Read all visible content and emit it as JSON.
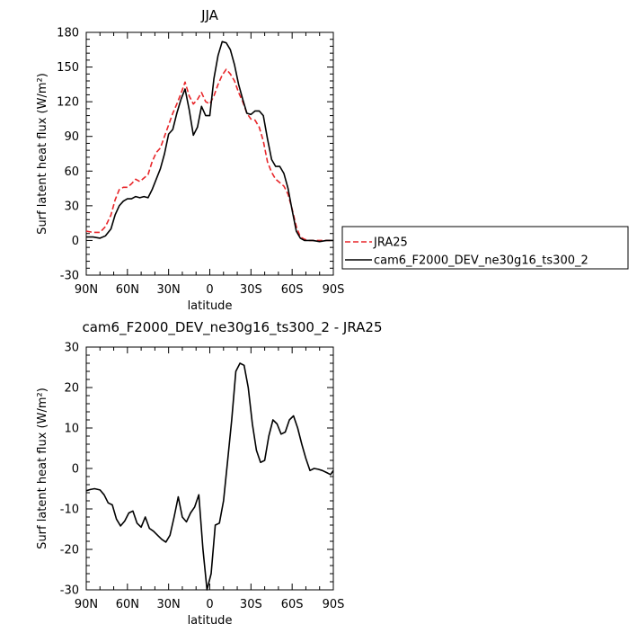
{
  "chart_data": [
    {
      "type": "line",
      "title": "JJA",
      "xlabel": "latitude",
      "ylabel": "Surf latent heat flux (W/m²)",
      "x_tick_labels": [
        "90N",
        "60N",
        "30N",
        "0",
        "30S",
        "60S",
        "90S"
      ],
      "x_tick_values": [
        90,
        60,
        30,
        0,
        -30,
        -60,
        -90
      ],
      "xlim": [
        90,
        -90
      ],
      "ylim": [
        -30,
        180
      ],
      "y_ticks": [
        -30,
        0,
        30,
        60,
        90,
        120,
        150,
        180
      ],
      "legend": {
        "position": "right",
        "entries": [
          "JRA25",
          "cam6_F2000_DEV_ne30g16_ts300_2"
        ]
      },
      "series": [
        {
          "name": "JRA25",
          "color": "#e8262a",
          "dash": "dashed",
          "x": [
            90,
            85,
            80,
            76,
            72,
            69,
            66,
            63,
            60,
            57,
            54,
            51,
            48,
            45,
            42,
            39,
            36,
            33,
            30,
            27,
            24,
            21,
            18,
            15,
            12,
            9,
            6,
            3,
            0,
            -3,
            -6,
            -9,
            -12,
            -15,
            -18,
            -21,
            -24,
            -27,
            -30,
            -33,
            -36,
            -39,
            -42,
            -45,
            -48,
            -51,
            -54,
            -57,
            -60,
            -63,
            -66,
            -69,
            -72,
            -75,
            -80,
            -85,
            -90
          ],
          "y": [
            8,
            7,
            7,
            12,
            22,
            35,
            44,
            46,
            46,
            49,
            53,
            51,
            54,
            57,
            68,
            76,
            80,
            90,
            100,
            110,
            118,
            127,
            137,
            125,
            118,
            122,
            128,
            120,
            118,
            125,
            135,
            143,
            148,
            144,
            138,
            128,
            120,
            110,
            105,
            104,
            98,
            86,
            68,
            59,
            53,
            50,
            47,
            40,
            27,
            12,
            3,
            1,
            0,
            0,
            0,
            0,
            0
          ]
        },
        {
          "name": "cam6_F2000_DEV_ne30g16_ts300_2",
          "color": "#000000",
          "dash": "solid",
          "x": [
            90,
            85,
            80,
            76,
            72,
            69,
            66,
            63,
            60,
            57,
            54,
            51,
            48,
            45,
            42,
            39,
            36,
            33,
            30,
            27,
            24,
            21,
            18,
            15,
            12,
            9,
            6,
            3,
            0,
            -3,
            -6,
            -9,
            -12,
            -15,
            -18,
            -21,
            -24,
            -27,
            -30,
            -33,
            -36,
            -39,
            -42,
            -45,
            -48,
            -51,
            -54,
            -57,
            -60,
            -63,
            -66,
            -69,
            -72,
            -75,
            -80,
            -85,
            -90
          ],
          "y": [
            3,
            3,
            2,
            4,
            10,
            22,
            30,
            34,
            36,
            36,
            38,
            37,
            38,
            37,
            44,
            53,
            62,
            75,
            92,
            96,
            110,
            122,
            131,
            113,
            91,
            98,
            116,
            108,
            108,
            140,
            160,
            172,
            171,
            165,
            152,
            135,
            122,
            110,
            109,
            112,
            112,
            108,
            88,
            70,
            64,
            64,
            58,
            45,
            26,
            8,
            2,
            0,
            0,
            0,
            -1,
            0,
            0
          ]
        }
      ]
    },
    {
      "type": "line",
      "title": "cam6_F2000_DEV_ne30g16_ts300_2 - JRA25",
      "xlabel": "latitude",
      "ylabel": "Surf latent heat flux (W/m²)",
      "x_tick_labels": [
        "90N",
        "60N",
        "30N",
        "0",
        "30S",
        "60S",
        "90S"
      ],
      "x_tick_values": [
        90,
        60,
        30,
        0,
        -30,
        -60,
        -90
      ],
      "xlim": [
        90,
        -90
      ],
      "ylim": [
        -30,
        30
      ],
      "y_ticks": [
        -30,
        -20,
        -10,
        0,
        10,
        20,
        30
      ],
      "series": [
        {
          "color": "#000000",
          "dash": "solid",
          "x": [
            90,
            87,
            84,
            80,
            77,
            74,
            71,
            68,
            65,
            62,
            59,
            56,
            53,
            50,
            47,
            44,
            41,
            38,
            35,
            32,
            29,
            26,
            23,
            20,
            17,
            14,
            11,
            8,
            5,
            2,
            -1,
            -4,
            -7,
            -10,
            -13,
            -16,
            -19,
            -22,
            -25,
            -28,
            -31,
            -34,
            -37,
            -40,
            -43,
            -46,
            -49,
            -52,
            -55,
            -58,
            -61,
            -64,
            -67,
            -70,
            -73,
            -76,
            -79,
            -82,
            -85,
            -88,
            -90
          ],
          "y": [
            -5.5,
            -5.2,
            -5,
            -5.3,
            -6.5,
            -8.5,
            -9,
            -12.5,
            -14.2,
            -13,
            -11,
            -10.5,
            -13.5,
            -14.5,
            -12,
            -14.8,
            -15.5,
            -16.5,
            -17.5,
            -18.2,
            -16.5,
            -12,
            -7,
            -12,
            -13.2,
            -11,
            -9.5,
            -6.5,
            -20,
            -30,
            -26,
            -14,
            -13.5,
            -8,
            2,
            12,
            24,
            26,
            25.5,
            20,
            11,
            4.5,
            1.5,
            2,
            8,
            12,
            11,
            8.5,
            9,
            12,
            13,
            10,
            6,
            2.5,
            -0.5,
            0,
            -0.2,
            -0.5,
            -1,
            -1.5,
            -0.5
          ]
        }
      ]
    }
  ]
}
